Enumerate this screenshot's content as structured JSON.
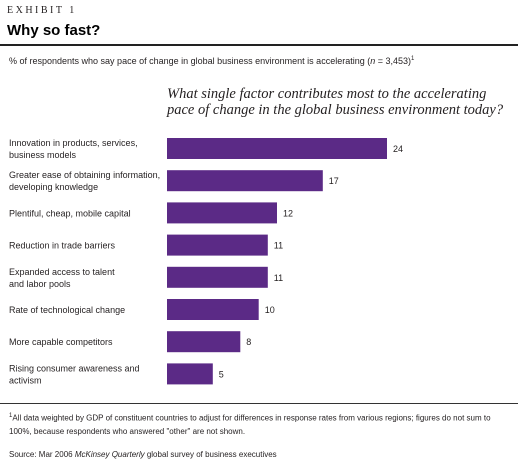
{
  "header": {
    "exhibit": "EXHIBIT 1",
    "title": "Why so fast?"
  },
  "subtitle": {
    "prefix": "% of respondents who say pace of change in global business environment is accelerating (",
    "n_label": "n",
    "n_value": " = 3,453)",
    "note_marker": "1"
  },
  "chart_data": {
    "type": "bar",
    "orientation": "horizontal",
    "title": "What single factor contributes most to the accelerating pace of change in the global business environment today?",
    "categories": [
      "Innovation in products, services, business models",
      "Greater ease of obtaining information, developing knowledge",
      "Plentiful, cheap, mobile capital",
      "Reduction in trade barriers",
      "Expanded access to talent and labor pools",
      "Rate of technological change",
      "More capable competitors",
      "Rising consumer awareness and activism"
    ],
    "category_lines": [
      [
        "Innovation in products, services,",
        "business models"
      ],
      [
        "Greater ease of obtaining information,",
        "developing knowledge"
      ],
      [
        "Plentiful, cheap, mobile capital"
      ],
      [
        "Reduction in trade barriers"
      ],
      [
        "Expanded access to talent",
        "and labor pools"
      ],
      [
        "Rate of technological change"
      ],
      [
        "More capable competitors"
      ],
      [
        "Rising consumer awareness and",
        "activism"
      ]
    ],
    "values": [
      24,
      17,
      12,
      11,
      11,
      10,
      8,
      5
    ],
    "bar_color": "#5b2a86",
    "grid": false,
    "legend": "none"
  },
  "footnote": {
    "marker": "1",
    "text": "All data weighted by GDP of constituent countries to adjust for differences in response rates from various regions; figures do not sum to 100%, because respondents who answered \"other\" are not shown."
  },
  "source": {
    "prefix": "Source: Mar 2006 ",
    "publication": "McKinsey Quarterly",
    "suffix": " global survey of business executives"
  }
}
